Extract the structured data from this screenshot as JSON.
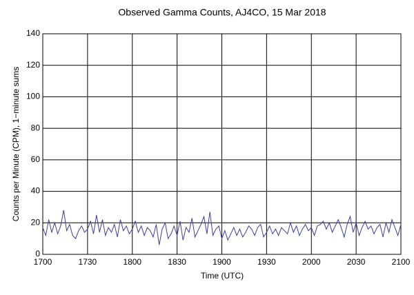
{
  "chart_data": {
    "type": "line",
    "title": "Observed Gamma Counts, AJ4CO, 15 Mar 2018",
    "x_label": "Time (UTC)",
    "y_label": "Counts per Minute (CPM), 1−minute sums",
    "x": [
      1020,
      1022,
      1024,
      1026,
      1028,
      1030,
      1032,
      1034,
      1036,
      1038,
      1040,
      1042,
      1044,
      1046,
      1048,
      1050,
      1052,
      1054,
      1056,
      1058,
      1060,
      1062,
      1064,
      1066,
      1068,
      1070,
      1072,
      1074,
      1076,
      1078,
      1080,
      1082,
      1084,
      1086,
      1088,
      1090,
      1092,
      1094,
      1096,
      1098,
      1100,
      1102,
      1104,
      1106,
      1108,
      1110,
      1112,
      1114,
      1116,
      1118,
      1120,
      1122,
      1124,
      1126,
      1128,
      1130,
      1132,
      1134,
      1136,
      1138,
      1140,
      1142,
      1144,
      1146,
      1148,
      1150,
      1152,
      1154,
      1156,
      1158,
      1160,
      1162,
      1164,
      1166,
      1168,
      1170,
      1172,
      1174,
      1176,
      1178,
      1180,
      1182,
      1184,
      1186,
      1188,
      1190,
      1192,
      1194,
      1196,
      1198,
      1200,
      1202,
      1204,
      1206,
      1208,
      1210,
      1212,
      1214,
      1216,
      1218,
      1220,
      1222,
      1224,
      1226,
      1228,
      1230,
      1232,
      1234,
      1236,
      1238,
      1240,
      1242,
      1244,
      1246,
      1248,
      1250,
      1252,
      1254,
      1256,
      1258,
      1260
    ],
    "series": [
      {
        "name": "Counts",
        "color": "#3c3ca0",
        "values": [
          17,
          12,
          22,
          14,
          20,
          13,
          18,
          28,
          15,
          19,
          12,
          10,
          15,
          18,
          14,
          16,
          21,
          13,
          25,
          14,
          22,
          12,
          17,
          14,
          19,
          11,
          22,
          15,
          18,
          13,
          16,
          21,
          14,
          18,
          12,
          17,
          15,
          11,
          19,
          6,
          16,
          20,
          10,
          13,
          18,
          12,
          21,
          9,
          17,
          14,
          23,
          11,
          15,
          19,
          24,
          13,
          27,
          12,
          16,
          18,
          10,
          15,
          9,
          13,
          17,
          12,
          16,
          11,
          14,
          18,
          16,
          12,
          17,
          19,
          11,
          14,
          18,
          13,
          16,
          12,
          17,
          15,
          13,
          20,
          14,
          18,
          12,
          16,
          19,
          15,
          17,
          12,
          18,
          19,
          21,
          16,
          20,
          14,
          18,
          22,
          17,
          11,
          19,
          24,
          14,
          20,
          12,
          17,
          21,
          16,
          18,
          13,
          17,
          19,
          11,
          20,
          14,
          22,
          17,
          12,
          19
        ]
      }
    ],
    "xlim": [
      1020,
      1260
    ],
    "xticks": [
      {
        "value": 1020,
        "label": "1700"
      },
      {
        "value": 1050,
        "label": "1730"
      },
      {
        "value": 1080,
        "label": "1800"
      },
      {
        "value": 1110,
        "label": "1830"
      },
      {
        "value": 1140,
        "label": "1900"
      },
      {
        "value": 1170,
        "label": "1930"
      },
      {
        "value": 1200,
        "label": "2000"
      },
      {
        "value": 1230,
        "label": "2030"
      },
      {
        "value": 1260,
        "label": "2100"
      }
    ],
    "ylim": [
      0,
      140
    ],
    "yticks": [
      0,
      20,
      40,
      60,
      80,
      100,
      120,
      140
    ],
    "grid": true
  }
}
